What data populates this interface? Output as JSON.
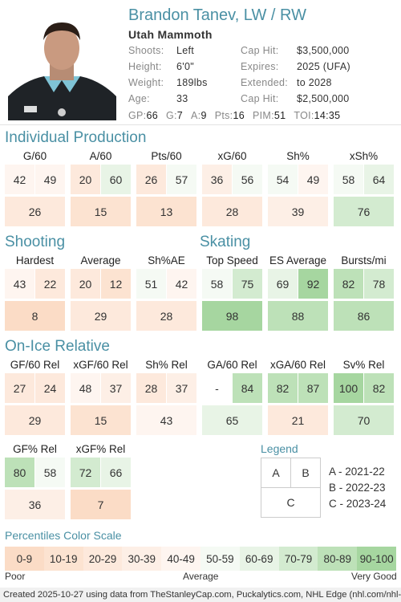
{
  "player": {
    "name": "Brandon Tanev, LW / RW",
    "team": "Utah Mammoth",
    "info_left": [
      {
        "label": "Shoots:",
        "value": "Left"
      },
      {
        "label": "Height:",
        "value": "6'0\""
      },
      {
        "label": "Weight:",
        "value": "189lbs"
      },
      {
        "label": "Age:",
        "value": "33"
      }
    ],
    "info_right": [
      {
        "label": "Cap Hit:",
        "value": "$3,500,000"
      },
      {
        "label": "Expires:",
        "value": "2025 (UFA)"
      },
      {
        "label": "Extended:",
        "value": "to 2028"
      },
      {
        "label": "Cap Hit:",
        "value": "$2,500,000"
      }
    ],
    "statline": [
      {
        "k": "GP:",
        "v": "66"
      },
      {
        "k": "G:",
        "v": "7"
      },
      {
        "k": "A:",
        "v": "9"
      },
      {
        "k": "Pts:",
        "v": "16"
      },
      {
        "k": "PIM:",
        "v": "51"
      },
      {
        "k": "TOI:",
        "v": "14:35"
      }
    ]
  },
  "sections": {
    "individual": "Individual Production",
    "shooting": "Shooting",
    "skating": "Skating",
    "onice": "On-Ice Relative"
  },
  "metrics": {
    "individual": [
      {
        "label": "G/60",
        "a": "42",
        "b": "49",
        "c": "26",
        "pa": 42,
        "pb": 49,
        "pc": 26
      },
      {
        "label": "A/60",
        "a": "20",
        "b": "60",
        "c": "15",
        "pa": 20,
        "pb": 60,
        "pc": 15
      },
      {
        "label": "Pts/60",
        "a": "26",
        "b": "57",
        "c": "13",
        "pa": 26,
        "pb": 57,
        "pc": 13
      },
      {
        "label": "xG/60",
        "a": "36",
        "b": "56",
        "c": "28",
        "pa": 36,
        "pb": 56,
        "pc": 28
      },
      {
        "label": "Sh%",
        "a": "54",
        "b": "49",
        "c": "39",
        "pa": 54,
        "pb": 49,
        "pc": 39
      },
      {
        "label": "xSh%",
        "a": "58",
        "b": "64",
        "c": "76",
        "pa": 58,
        "pb": 64,
        "pc": 76
      }
    ],
    "shooting": [
      {
        "label": "Hardest",
        "a": "43",
        "b": "22",
        "c": "8",
        "pa": 43,
        "pb": 22,
        "pc": 8
      },
      {
        "label": "Average",
        "a": "20",
        "b": "12",
        "c": "29",
        "pa": 20,
        "pb": 12,
        "pc": 29
      },
      {
        "label": "Sh%AE",
        "a": "51",
        "b": "42",
        "c": "28",
        "pa": 51,
        "pb": 42,
        "pc": 28
      }
    ],
    "skating": [
      {
        "label": "Top Speed",
        "a": "58",
        "b": "75",
        "c": "98",
        "pa": 58,
        "pb": 75,
        "pc": 98
      },
      {
        "label": "ES Average",
        "a": "69",
        "b": "92",
        "c": "88",
        "pa": 69,
        "pb": 92,
        "pc": 88
      },
      {
        "label": "Bursts/mi",
        "a": "82",
        "b": "78",
        "c": "86",
        "pa": 82,
        "pb": 78,
        "pc": 86
      }
    ],
    "onice": [
      {
        "label": "GF/60 Rel",
        "a": "27",
        "b": "24",
        "c": "29",
        "pa": 27,
        "pb": 24,
        "pc": 29
      },
      {
        "label": "xGF/60 Rel",
        "a": "48",
        "b": "37",
        "c": "15",
        "pa": 48,
        "pb": 37,
        "pc": 15
      },
      {
        "label": "Sh% Rel",
        "a": "28",
        "b": "37",
        "c": "43",
        "pa": 28,
        "pb": 37,
        "pc": 43
      },
      {
        "label": "GA/60 Rel",
        "a": "-",
        "b": "84",
        "c": "65",
        "pa": null,
        "pb": 84,
        "pc": 65
      },
      {
        "label": "xGA/60 Rel",
        "a": "82",
        "b": "87",
        "c": "21",
        "pa": 82,
        "pb": 87,
        "pc": 21
      },
      {
        "label": "Sv% Rel",
        "a": "100",
        "b": "82",
        "c": "70",
        "pa": 100,
        "pb": 82,
        "pc": 70
      }
    ],
    "onice2": [
      {
        "label": "GF% Rel",
        "a": "80",
        "b": "58",
        "c": "36",
        "pa": 80,
        "pb": 58,
        "pc": 36
      },
      {
        "label": "xGF% Rel",
        "a": "72",
        "b": "66",
        "c": "7",
        "pa": 72,
        "pb": 66,
        "pc": 7
      }
    ]
  },
  "legend": {
    "title": "Legend",
    "a": "A",
    "b": "B",
    "c": "C",
    "items": [
      "A - 2021-22",
      "B - 2022-23",
      "C - 2023-24"
    ]
  },
  "scale": {
    "title": "Percentiles Color Scale",
    "bins": [
      "0-9",
      "10-19",
      "20-29",
      "30-39",
      "40-49",
      "50-59",
      "60-69",
      "70-79",
      "80-89",
      "90-100"
    ],
    "colors": [
      "#fbdcc6",
      "#fce3d1",
      "#fde9dc",
      "#fdefe6",
      "#fef5f0",
      "#f5faf4",
      "#e8f4e6",
      "#d3ebd0",
      "#bde1b8",
      "#a6d6a0"
    ],
    "poor": "Poor",
    "average": "Average",
    "very_good": "Very Good"
  },
  "footer": "Created 2025-10-27 using data from TheStanleyCap.com, Puckalytics.com, NHL Edge (nhl.com/nhl-edge)."
}
